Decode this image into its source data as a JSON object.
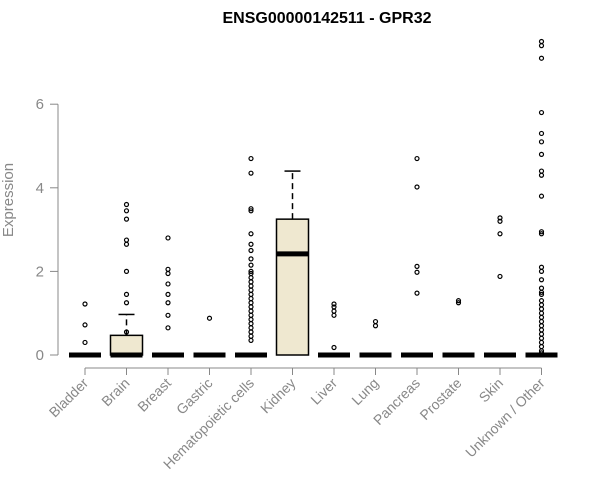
{
  "chart_data": {
    "type": "box",
    "title": "ENSG00000142511 - GPR32",
    "xlabel": "",
    "ylabel": "Expression",
    "ylim": [
      0,
      7.6
    ],
    "yticks": [
      0,
      2,
      4,
      6
    ],
    "categories": [
      "Bladder",
      "Brain",
      "Breast",
      "Gastric",
      "Hematopoietic cells",
      "Kidney",
      "Liver",
      "Lung",
      "Pancreas",
      "Prostate",
      "Skin",
      "Unknown / Other"
    ],
    "box_fill": "#EFE8D0",
    "boxes": [
      {
        "q1": 0,
        "median": 0,
        "q3": 0,
        "whisker_low": 0,
        "whisker_high": 0,
        "outliers": [
          1.22,
          0.72,
          0.3
        ]
      },
      {
        "q1": 0,
        "median": 0,
        "q3": 0.47,
        "whisker_low": 0,
        "whisker_high": 0.97,
        "outliers": [
          3.6,
          3.45,
          3.25,
          2.75,
          2.65,
          2.0,
          1.45,
          1.25,
          0.55
        ]
      },
      {
        "q1": 0,
        "median": 0,
        "q3": 0,
        "whisker_low": 0,
        "whisker_high": 0,
        "outliers": [
          2.8,
          2.05,
          1.95,
          1.7,
          1.45,
          1.25,
          0.95,
          0.65
        ]
      },
      {
        "q1": 0,
        "median": 0,
        "q3": 0,
        "whisker_low": 0,
        "whisker_high": 0,
        "outliers": [
          0.88
        ]
      },
      {
        "q1": 0,
        "median": 0,
        "q3": 0,
        "whisker_low": 0,
        "whisker_high": 0,
        "outliers": [
          4.7,
          4.35,
          3.5,
          3.45,
          2.9,
          2.65,
          2.5,
          2.3,
          2.15,
          2.0,
          1.95,
          1.85,
          1.75,
          1.65,
          1.55,
          1.45,
          1.35,
          1.25,
          1.15,
          1.05,
          0.95,
          0.85,
          0.75,
          0.65,
          0.55,
          0.45,
          0.35
        ]
      },
      {
        "q1": 0,
        "median": 2.42,
        "q3": 3.25,
        "whisker_low": 0,
        "whisker_high": 4.4,
        "outliers": []
      },
      {
        "q1": 0,
        "median": 0,
        "q3": 0,
        "whisker_low": 0,
        "whisker_high": 0,
        "outliers": [
          1.22,
          1.15,
          1.05,
          0.95,
          0.18
        ]
      },
      {
        "q1": 0,
        "median": 0,
        "q3": 0,
        "whisker_low": 0,
        "whisker_high": 0,
        "outliers": [
          0.8,
          0.7
        ]
      },
      {
        "q1": 0,
        "median": 0,
        "q3": 0,
        "whisker_low": 0,
        "whisker_high": 0,
        "outliers": [
          4.7,
          4.02,
          2.12,
          1.98,
          1.48
        ]
      },
      {
        "q1": 0,
        "median": 0,
        "q3": 0,
        "whisker_low": 0,
        "whisker_high": 0,
        "outliers": [
          1.3,
          1.25
        ]
      },
      {
        "q1": 0,
        "median": 0,
        "q3": 0,
        "whisker_low": 0,
        "whisker_high": 0,
        "outliers": [
          3.28,
          3.2,
          2.9,
          1.88
        ]
      },
      {
        "q1": 0,
        "median": 0,
        "q3": 0,
        "whisker_low": 0,
        "whisker_high": 0,
        "outliers": [
          7.5,
          7.4,
          7.1,
          5.8,
          5.3,
          5.1,
          4.8,
          4.4,
          4.3,
          3.8,
          2.95,
          2.9,
          2.1,
          2.0,
          1.8,
          1.6,
          1.5,
          1.45,
          1.3,
          1.2,
          1.1,
          1.0,
          0.9,
          0.8,
          0.7,
          0.6,
          0.5,
          0.4,
          0.3,
          0.2,
          0.1,
          0.05
        ]
      }
    ]
  }
}
